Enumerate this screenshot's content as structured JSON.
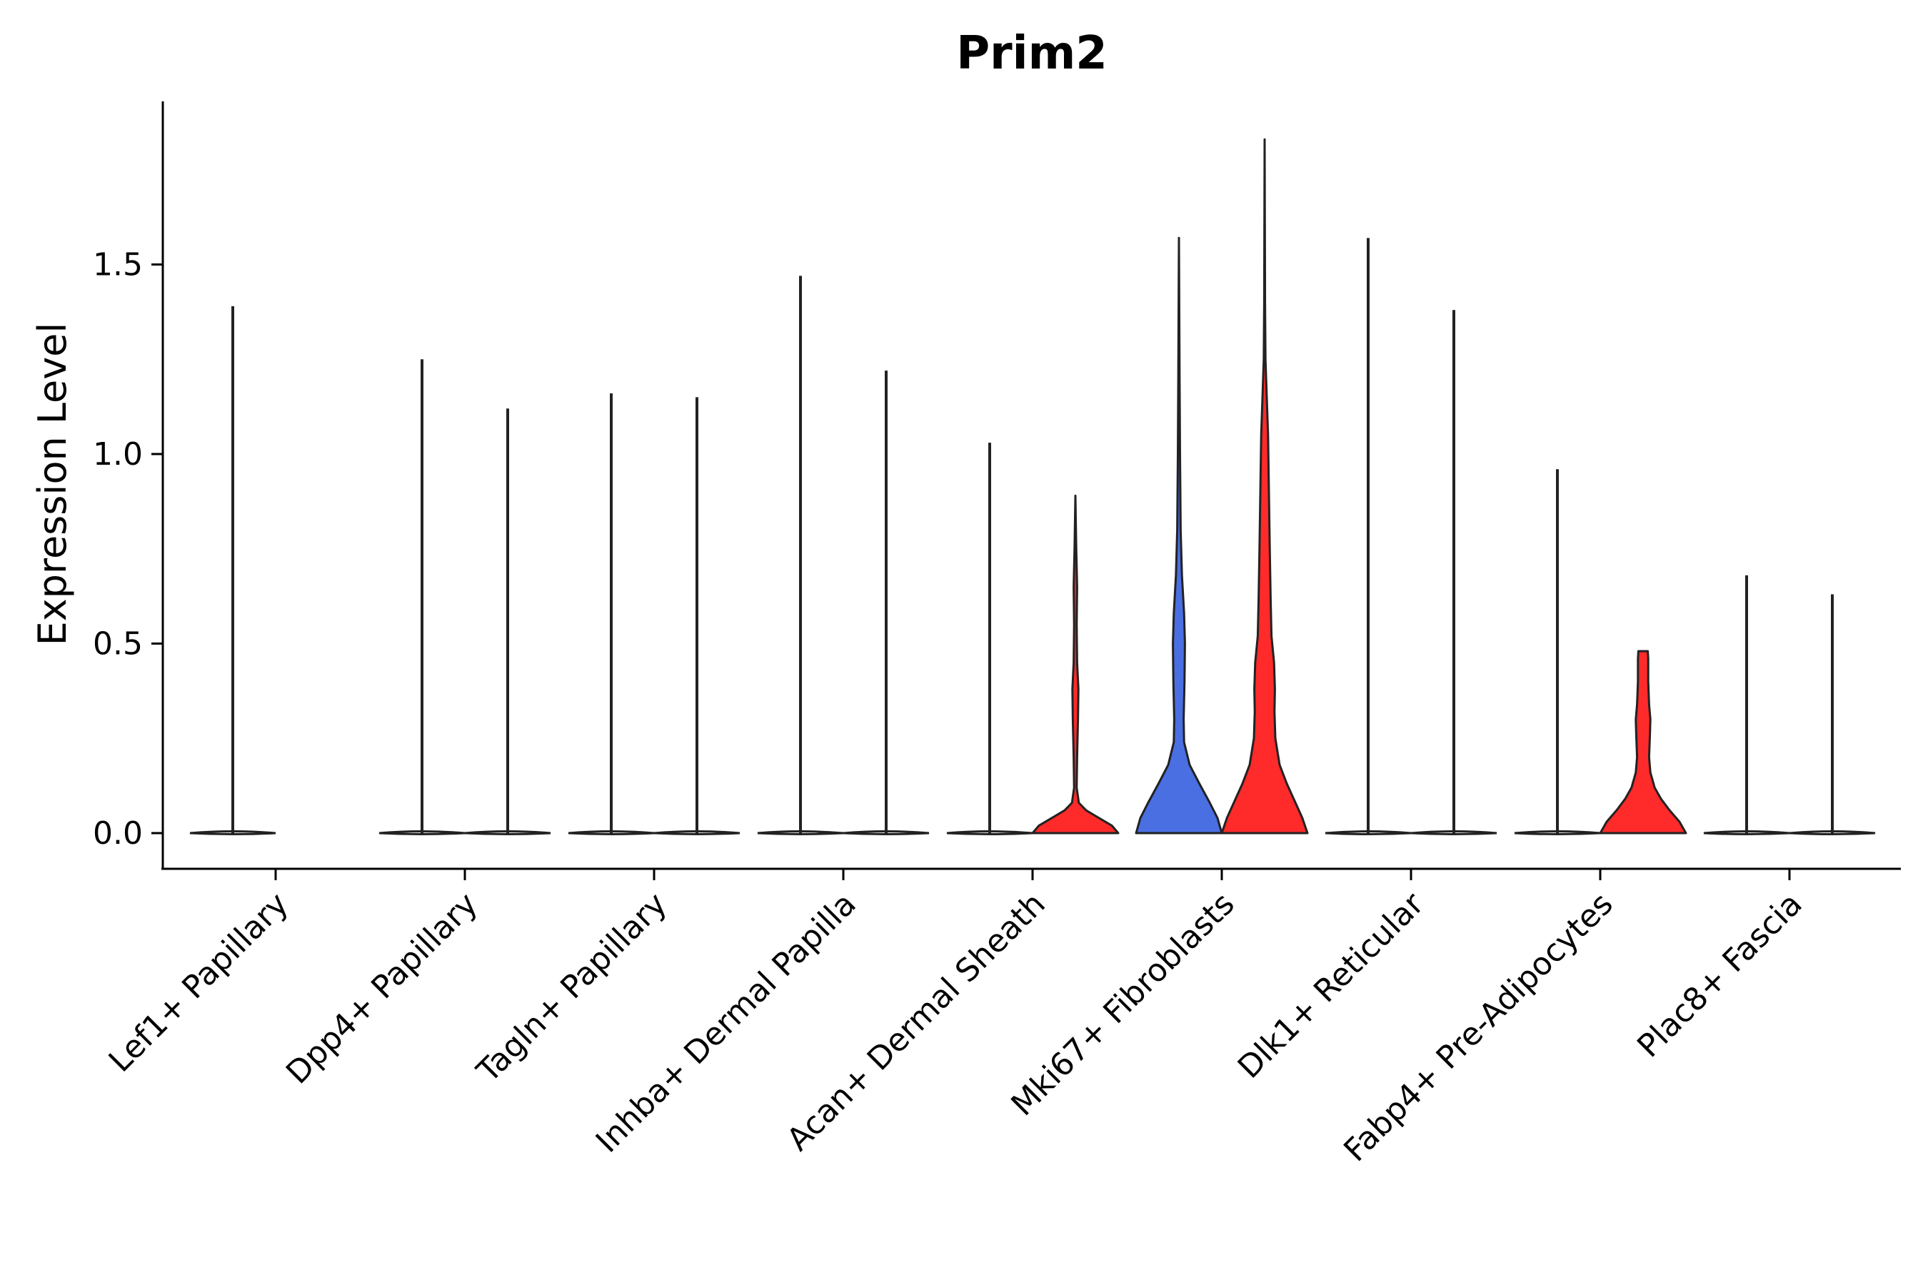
{
  "chart_data": {
    "type": "violin",
    "title": "Prim2",
    "xlabel": "",
    "ylabel": "Expression Level",
    "ylim": [
      -0.09,
      1.93
    ],
    "yticks": [
      0.0,
      0.5,
      1.0,
      1.5
    ],
    "ytick_labels": [
      "0.0",
      "0.5",
      "1.0",
      "1.5"
    ],
    "categories": [
      "Lef1+ Papillary",
      "Dpp4+ Papillary",
      "Tagln+ Papillary",
      "Inhba+ Dermal Papilla",
      "Acan+ Dermal Sheath",
      "Mki67+ Fibroblasts",
      "Dlk1+ Reticular",
      "Fabp4+ Pre-Adipocytes",
      "Plac8+ Fascia"
    ],
    "groups": [
      {
        "name": "group1",
        "color": "#4a6fe3"
      },
      {
        "name": "group2",
        "color": "#ff2a2a"
      }
    ],
    "violins": [
      {
        "category": 0,
        "group": 0,
        "max": 1.39,
        "filled": false,
        "profile": [
          [
            0,
            1.0
          ],
          [
            0.02,
            0.01
          ],
          [
            1.39,
            0.0
          ]
        ]
      },
      {
        "category": 1,
        "group": 0,
        "max": 1.25,
        "filled": false,
        "profile": [
          [
            0,
            1.0
          ],
          [
            0.02,
            0.01
          ],
          [
            1.25,
            0.0
          ]
        ]
      },
      {
        "category": 1,
        "group": 1,
        "max": 1.12,
        "filled": false,
        "profile": [
          [
            0,
            1.0
          ],
          [
            0.02,
            0.01
          ],
          [
            1.12,
            0.0
          ]
        ]
      },
      {
        "category": 2,
        "group": 0,
        "max": 1.16,
        "filled": false,
        "profile": [
          [
            0,
            1.0
          ],
          [
            0.02,
            0.01
          ],
          [
            1.16,
            0.0
          ]
        ]
      },
      {
        "category": 2,
        "group": 1,
        "max": 1.15,
        "filled": false,
        "profile": [
          [
            0,
            1.0
          ],
          [
            0.02,
            0.01
          ],
          [
            1.15,
            0.0
          ]
        ]
      },
      {
        "category": 3,
        "group": 0,
        "max": 1.47,
        "filled": false,
        "profile": [
          [
            0,
            1.0
          ],
          [
            0.02,
            0.01
          ],
          [
            1.47,
            0.0
          ]
        ]
      },
      {
        "category": 3,
        "group": 1,
        "max": 1.22,
        "filled": false,
        "profile": [
          [
            0,
            1.0
          ],
          [
            0.02,
            0.01
          ],
          [
            1.22,
            0.0
          ]
        ]
      },
      {
        "category": 4,
        "group": 0,
        "max": 1.03,
        "filled": false,
        "profile": [
          [
            0,
            1.0
          ],
          [
            0.02,
            0.01
          ],
          [
            1.03,
            0.0
          ]
        ]
      },
      {
        "category": 4,
        "group": 1,
        "max": 0.89,
        "filled": true,
        "profile": [
          [
            0,
            1.0
          ],
          [
            0.02,
            0.85
          ],
          [
            0.04,
            0.55
          ],
          [
            0.06,
            0.25
          ],
          [
            0.08,
            0.08
          ],
          [
            0.12,
            0.03
          ],
          [
            0.2,
            0.04
          ],
          [
            0.3,
            0.06
          ],
          [
            0.38,
            0.07
          ],
          [
            0.45,
            0.04
          ],
          [
            0.55,
            0.03
          ],
          [
            0.65,
            0.04
          ],
          [
            0.75,
            0.02
          ],
          [
            0.89,
            0.0
          ]
        ]
      },
      {
        "category": 5,
        "group": 0,
        "max": 1.57,
        "filled": true,
        "profile": [
          [
            0,
            1.0
          ],
          [
            0.04,
            0.9
          ],
          [
            0.08,
            0.72
          ],
          [
            0.13,
            0.48
          ],
          [
            0.18,
            0.25
          ],
          [
            0.24,
            0.12
          ],
          [
            0.3,
            0.11
          ],
          [
            0.4,
            0.13
          ],
          [
            0.5,
            0.14
          ],
          [
            0.58,
            0.12
          ],
          [
            0.68,
            0.07
          ],
          [
            0.8,
            0.04
          ],
          [
            1.0,
            0.025
          ],
          [
            1.2,
            0.015
          ],
          [
            1.57,
            0.0
          ]
        ]
      },
      {
        "category": 5,
        "group": 1,
        "max": 1.83,
        "filled": true,
        "profile": [
          [
            0,
            1.0
          ],
          [
            0.04,
            0.88
          ],
          [
            0.08,
            0.72
          ],
          [
            0.13,
            0.52
          ],
          [
            0.18,
            0.35
          ],
          [
            0.25,
            0.25
          ],
          [
            0.32,
            0.23
          ],
          [
            0.38,
            0.24
          ],
          [
            0.45,
            0.22
          ],
          [
            0.52,
            0.16
          ],
          [
            0.62,
            0.14
          ],
          [
            0.75,
            0.12
          ],
          [
            0.9,
            0.1
          ],
          [
            1.05,
            0.08
          ],
          [
            1.15,
            0.05
          ],
          [
            1.25,
            0.02
          ],
          [
            1.4,
            0.01
          ],
          [
            1.83,
            0.0
          ]
        ]
      },
      {
        "category": 6,
        "group": 0,
        "max": 1.57,
        "filled": false,
        "profile": [
          [
            0,
            1.0
          ],
          [
            0.02,
            0.01
          ],
          [
            1.57,
            0.0
          ]
        ]
      },
      {
        "category": 6,
        "group": 1,
        "max": 1.38,
        "filled": false,
        "profile": [
          [
            0,
            1.0
          ],
          [
            0.02,
            0.01
          ],
          [
            1.38,
            0.0
          ]
        ]
      },
      {
        "category": 7,
        "group": 0,
        "max": 0.96,
        "filled": false,
        "profile": [
          [
            0,
            1.0
          ],
          [
            0.02,
            0.01
          ],
          [
            0.96,
            0.0
          ]
        ]
      },
      {
        "category": 7,
        "group": 1,
        "max": 0.48,
        "filled": true,
        "profile": [
          [
            0,
            1.0
          ],
          [
            0.03,
            0.85
          ],
          [
            0.06,
            0.62
          ],
          [
            0.09,
            0.42
          ],
          [
            0.12,
            0.27
          ],
          [
            0.16,
            0.17
          ],
          [
            0.2,
            0.14
          ],
          [
            0.26,
            0.16
          ],
          [
            0.3,
            0.17
          ],
          [
            0.34,
            0.14
          ],
          [
            0.4,
            0.12
          ],
          [
            0.46,
            0.12
          ],
          [
            0.48,
            0.11
          ]
        ]
      },
      {
        "category": 8,
        "group": 0,
        "max": 0.68,
        "filled": false,
        "profile": [
          [
            0,
            1.0
          ],
          [
            0.02,
            0.01
          ],
          [
            0.68,
            0.0
          ]
        ]
      },
      {
        "category": 8,
        "group": 1,
        "max": 0.63,
        "filled": false,
        "profile": [
          [
            0,
            1.0
          ],
          [
            0.02,
            0.01
          ],
          [
            0.63,
            0.0
          ]
        ]
      }
    ]
  }
}
